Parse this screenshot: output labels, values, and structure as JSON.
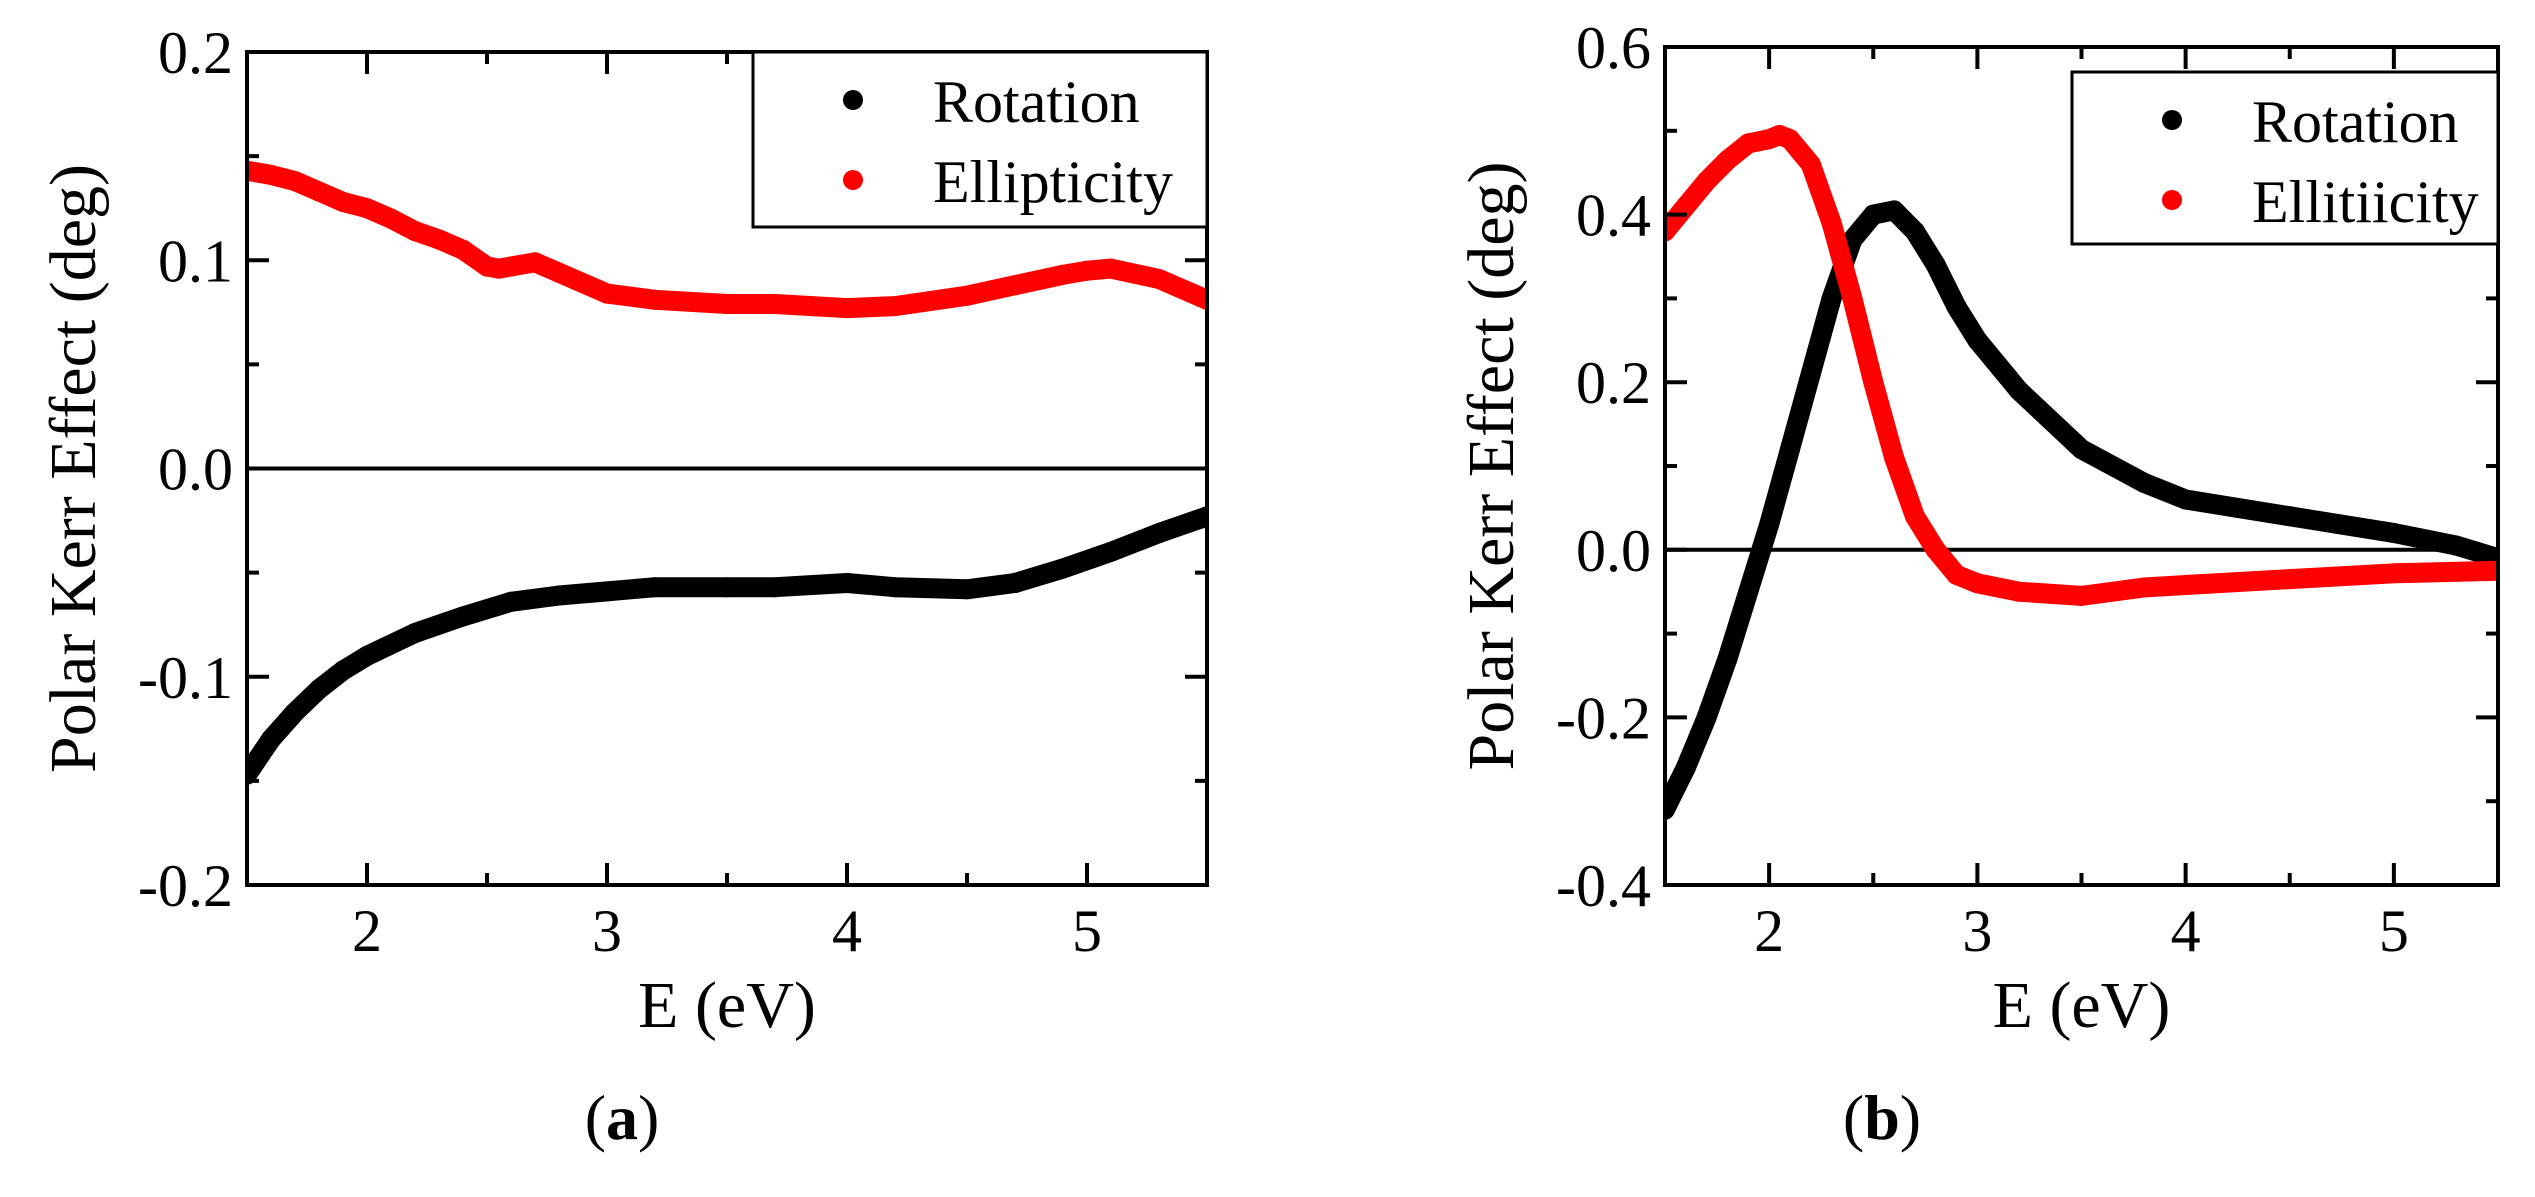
{
  "chart_data": [
    {
      "type": "scatter",
      "panel_label": "a",
      "xlabel": "E (eV)",
      "ylabel": "Polar Kerr Effect (deg)",
      "xlim": [
        1.5,
        5.5
      ],
      "ylim": [
        -0.2,
        0.2
      ],
      "xticks": [
        2,
        3,
        4,
        5
      ],
      "yticks": [
        -0.2,
        -0.1,
        0.0,
        0.1,
        0.2
      ],
      "ytick_labels": [
        "-0.2",
        "-0.1",
        "0.0",
        "0.1",
        "0.2"
      ],
      "zero_line": true,
      "legend": {
        "position": "top-right",
        "entries": [
          "Rotation",
          "Ellipticity"
        ]
      },
      "series": [
        {
          "name": "Rotation",
          "color": "#000000",
          "x": [
            1.5,
            1.6,
            1.7,
            1.8,
            1.9,
            2.0,
            2.2,
            2.4,
            2.6,
            2.8,
            3.0,
            3.2,
            3.5,
            3.7,
            4.0,
            4.2,
            4.5,
            4.7,
            4.9,
            5.1,
            5.3,
            5.5
          ],
          "y": [
            -0.147,
            -0.13,
            -0.117,
            -0.106,
            -0.097,
            -0.09,
            -0.079,
            -0.071,
            -0.064,
            -0.061,
            -0.059,
            -0.057,
            -0.057,
            -0.057,
            -0.055,
            -0.057,
            -0.058,
            -0.055,
            -0.048,
            -0.04,
            -0.031,
            -0.023
          ]
        },
        {
          "name": "Ellipticity",
          "color": "#ff0000",
          "x": [
            1.5,
            1.6,
            1.7,
            1.8,
            1.9,
            2.0,
            2.1,
            2.2,
            2.3,
            2.4,
            2.5,
            2.55,
            2.6,
            2.7,
            2.8,
            3.0,
            3.2,
            3.5,
            3.7,
            4.0,
            4.2,
            4.5,
            4.7,
            4.9,
            5.0,
            5.1,
            5.3,
            5.5
          ],
          "y": [
            0.143,
            0.141,
            0.138,
            0.133,
            0.128,
            0.125,
            0.12,
            0.114,
            0.11,
            0.105,
            0.097,
            0.096,
            0.097,
            0.099,
            0.094,
            0.084,
            0.081,
            0.079,
            0.079,
            0.077,
            0.078,
            0.083,
            0.088,
            0.093,
            0.095,
            0.096,
            0.091,
            0.081
          ]
        }
      ]
    },
    {
      "type": "scatter",
      "panel_label": "b",
      "xlabel": "E (eV)",
      "ylabel": "Polar Kerr Effect (deg)",
      "xlim": [
        1.5,
        5.5
      ],
      "ylim": [
        -0.4,
        0.6
      ],
      "xticks": [
        2,
        3,
        4,
        5
      ],
      "yticks": [
        -0.4,
        -0.2,
        0.0,
        0.2,
        0.4,
        0.6
      ],
      "ytick_labels": [
        "-0.4",
        "-0.2",
        "0.0",
        "0.2",
        "0.4",
        "0.6"
      ],
      "zero_line": true,
      "legend": {
        "position": "top-right",
        "entries": [
          "Rotation",
          "Ellitiicity"
        ]
      },
      "series": [
        {
          "name": "Rotation",
          "color": "#000000",
          "x": [
            1.5,
            1.6,
            1.7,
            1.8,
            1.9,
            2.0,
            2.1,
            2.2,
            2.3,
            2.4,
            2.5,
            2.6,
            2.7,
            2.8,
            2.9,
            3.0,
            3.2,
            3.5,
            3.8,
            4.0,
            4.5,
            5.0,
            5.3,
            5.5
          ],
          "y": [
            -0.31,
            -0.26,
            -0.2,
            -0.13,
            -0.05,
            0.03,
            0.12,
            0.21,
            0.3,
            0.37,
            0.4,
            0.405,
            0.38,
            0.34,
            0.29,
            0.25,
            0.19,
            0.12,
            0.08,
            0.06,
            0.04,
            0.02,
            0.005,
            -0.01
          ]
        },
        {
          "name": "Ellitiicity",
          "color": "#ff0000",
          "x": [
            1.5,
            1.6,
            1.7,
            1.8,
            1.9,
            2.0,
            2.05,
            2.1,
            2.2,
            2.3,
            2.4,
            2.5,
            2.6,
            2.7,
            2.8,
            2.9,
            3.0,
            3.2,
            3.5,
            3.8,
            4.0,
            4.5,
            5.0,
            5.5
          ],
          "y": [
            0.38,
            0.41,
            0.44,
            0.465,
            0.485,
            0.49,
            0.495,
            0.49,
            0.46,
            0.39,
            0.3,
            0.2,
            0.11,
            0.04,
            0.0,
            -0.03,
            -0.04,
            -0.05,
            -0.055,
            -0.045,
            -0.042,
            -0.035,
            -0.028,
            -0.025
          ]
        }
      ]
    }
  ]
}
